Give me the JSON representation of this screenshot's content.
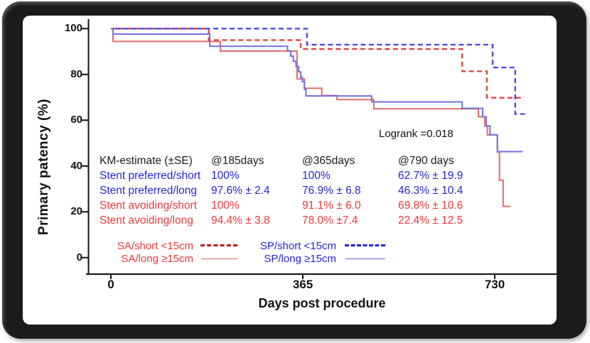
{
  "y_axis": {
    "title": "Primary patency (%)",
    "ticks": [
      100,
      80,
      60,
      40,
      20,
      0
    ]
  },
  "x_axis": {
    "title": "Days post procedure",
    "ticks": [
      0,
      365,
      730
    ]
  },
  "annotation": {
    "logrank": "Logrank =0.018"
  },
  "km_table": {
    "header": {
      "c0": "KM-estimate (±SE)",
      "c1": "@185days",
      "c2": "@365days",
      "c3": "@790 days"
    },
    "rows": [
      {
        "label": "Stent preferred/short",
        "group": "blue",
        "c1": "100%",
        "c2": "100%",
        "c3": "62.7% ± 19.9"
      },
      {
        "label": "Stent preferred/long",
        "group": "blue",
        "c1": "97.6% ± 2.4",
        "c2": "76.9% ± 6.8",
        "c3": "46.3% ± 10.4"
      },
      {
        "label": "Stent avoiding/short",
        "group": "red",
        "c1": "100%",
        "c2": "91.1% ± 6.0",
        "c3": "69.8% ± 10.6"
      },
      {
        "label": "Stent avoiding/long",
        "group": "red",
        "c1": "94.4% ± 3.8",
        "c2": "78.0% ±7.4",
        "c3": "22.4% ± 12.5"
      }
    ]
  },
  "legend": {
    "items": [
      {
        "label": "SA/short <15cm",
        "style": "dashed",
        "color": "#c01616",
        "text_color": "#f23636"
      },
      {
        "label": "SA/long ≥15cm",
        "style": "solid",
        "color": "#d95f5f",
        "text_color": "#f23636"
      },
      {
        "label": "SP/short <15cm",
        "style": "dashed",
        "color": "#2424d6",
        "text_color": "#2525d9"
      },
      {
        "label": "SP/long ≥15cm",
        "style": "solid",
        "color": "#6565d8",
        "text_color": "#2525d9"
      }
    ]
  },
  "chart_data": {
    "type": "line",
    "subtype": "kaplan-meier-step",
    "title": "",
    "xlabel": "Days post procedure",
    "ylabel": "Primary patency (%)",
    "xlim": [
      0,
      855
    ],
    "ylim": [
      0,
      105
    ],
    "xticks": [
      0,
      365,
      730
    ],
    "yticks": [
      0,
      20,
      40,
      60,
      80,
      100
    ],
    "grid": false,
    "legend_position": "bottom-inside",
    "annotation": "Logrank =0.018",
    "series": [
      {
        "id": "sa-short",
        "name": "SA/short <15cm (Stent avoiding/short)",
        "color": "#e04545",
        "style": "dashed",
        "points": [
          [
            0,
            100
          ],
          [
            186,
            95.0
          ],
          [
            361,
            91.1
          ],
          [
            668,
            81.4
          ],
          [
            715,
            69.8
          ]
        ],
        "end_day": 780
      },
      {
        "id": "sp-short",
        "name": "SP/short <15cm (Stent preferred/short)",
        "color": "#4a4af0",
        "style": "dashed",
        "points": [
          [
            0,
            100
          ],
          [
            373,
            93.0
          ],
          [
            726,
            83.0
          ],
          [
            769,
            62.7
          ]
        ],
        "end_day": 788
      },
      {
        "id": "sa-long",
        "name": "SA/long ≥15cm (Stent avoiding/long)",
        "color": "#e46a6a",
        "style": "solid",
        "points": [
          [
            0,
            100
          ],
          [
            4,
            94.4
          ],
          [
            208,
            90.2
          ],
          [
            354,
            78.0
          ],
          [
            368,
            74.0
          ],
          [
            401,
            70.8
          ],
          [
            430,
            69.0
          ],
          [
            500,
            65.0
          ],
          [
            699,
            61.5
          ],
          [
            711,
            57.5
          ],
          [
            716,
            53.6
          ],
          [
            735,
            46.1
          ],
          [
            739,
            33.8
          ],
          [
            746,
            22.4
          ]
        ],
        "end_day": 760
      },
      {
        "id": "sp-long",
        "name": "SP/long ≥15cm (Stent preferred/long)",
        "color": "#7272e0",
        "style": "solid",
        "points": [
          [
            0,
            100
          ],
          [
            4,
            97.6
          ],
          [
            188,
            92.3
          ],
          [
            336,
            90.3
          ],
          [
            342,
            88.0
          ],
          [
            347,
            85.7
          ],
          [
            352,
            83.4
          ],
          [
            357,
            81.1
          ],
          [
            361,
            78.8
          ],
          [
            364,
            76.9
          ],
          [
            368,
            73.5
          ],
          [
            371,
            70.6
          ],
          [
            496,
            68.0
          ],
          [
            668,
            65.2
          ],
          [
            707,
            61.5
          ],
          [
            714,
            57.5
          ],
          [
            721,
            53.6
          ],
          [
            735,
            46.3
          ]
        ],
        "end_day": 783
      }
    ]
  }
}
